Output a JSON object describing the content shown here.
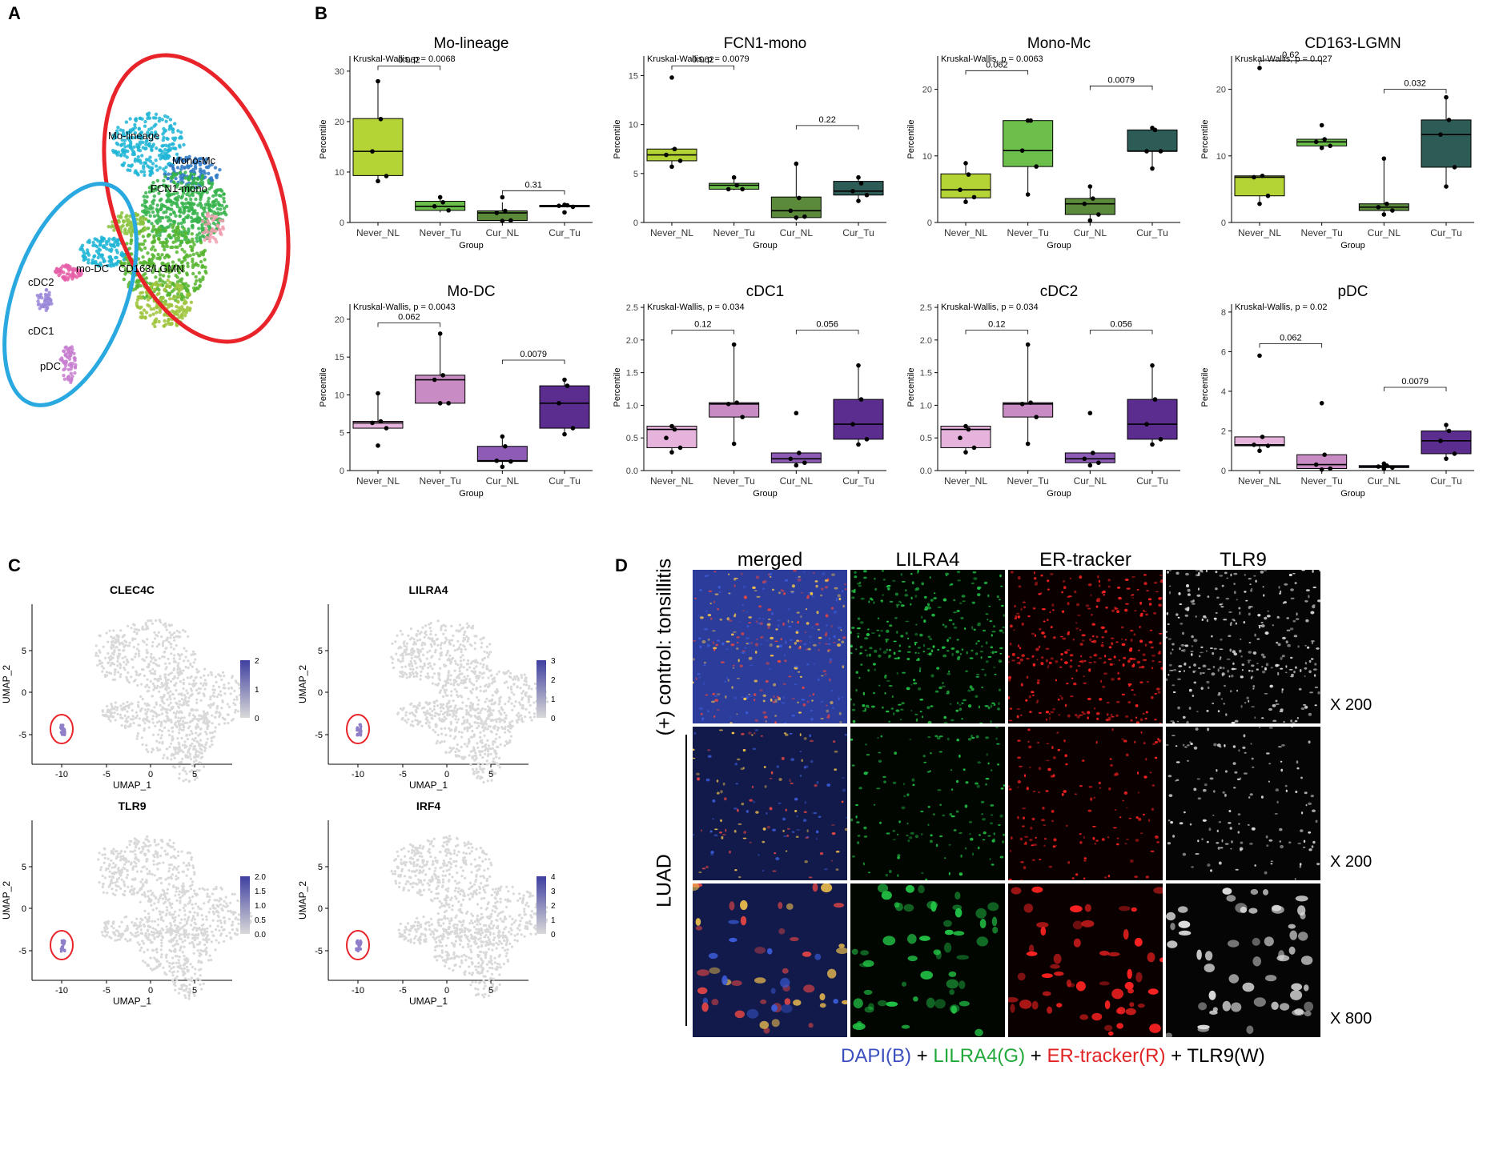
{
  "panels": {
    "a": "A",
    "b": "B",
    "c": "C",
    "d": "D"
  },
  "panel_a": {
    "cluster_labels": [
      "Mo-lineage",
      "Mono-Mc",
      "FCN1-mono",
      "mo-DC",
      "cDC2",
      "CD163/LGMN",
      "cDC1",
      "pDC"
    ],
    "colors": {
      "red_ellipse": "#e8242a",
      "blue_ellipse": "#2aa9e0"
    }
  },
  "panel_b": {
    "xlabel": "Group",
    "ylabel": "Percentile",
    "colors": {
      "mono": [
        "#b4d335",
        "#6cbf4a",
        "#5a8a3a",
        "#2d5b55"
      ],
      "dc": [
        "#e6b3dc",
        "#c98bc4",
        "#8e5cb6",
        "#5a2d8e"
      ]
    }
  },
  "chart_data": [
    {
      "type": "box",
      "title": "Mo-lineage",
      "stat": "Kruskal-Wallis, p = 0.0068",
      "categories": [
        "Never_NL",
        "Never_Tu",
        "Cur_NL",
        "Cur_Tu"
      ],
      "ylim": [
        0,
        33
      ],
      "yticks": [
        0,
        10,
        20,
        30
      ],
      "boxes": [
        {
          "q1": 9.3,
          "median": 14.1,
          "q3": 20.6,
          "min": 8.2,
          "max": 28.0
        },
        {
          "q1": 2.4,
          "median": 3.2,
          "q3": 4.2,
          "min": 2.0,
          "max": 4.8
        },
        {
          "q1": 0.4,
          "median": 1.9,
          "q3": 2.3,
          "min": 0.1,
          "max": 4.0
        },
        {
          "q1": 3.1,
          "median": 3.3,
          "q3": 3.4,
          "min": 3.0,
          "max": 3.5
        }
      ],
      "points": [
        [
          28.0,
          20.5,
          14.1,
          9.2,
          8.2
        ],
        [
          5.0,
          4.0,
          3.2,
          2.4
        ],
        [
          5.0,
          2.3,
          1.9,
          0.4,
          0.3
        ],
        [
          3.5,
          3.4,
          3.3,
          3.1,
          2.0
        ]
      ],
      "brackets": [
        {
          "from": 0,
          "to": 1,
          "y": 31,
          "label": "0.062"
        },
        {
          "from": 2,
          "to": 3,
          "y": 6.3,
          "label": "0.31"
        }
      ]
    },
    {
      "type": "box",
      "title": "FCN1-mono",
      "stat": "Kruskal-Wallis, p = 0.0079",
      "categories": [
        "Never_NL",
        "Never_Tu",
        "Cur_NL",
        "Cur_Tu"
      ],
      "ylim": [
        0,
        17
      ],
      "yticks": [
        0,
        5,
        10,
        15
      ],
      "boxes": [
        {
          "q1": 6.3,
          "median": 6.9,
          "q3": 7.5,
          "min": 5.7,
          "max": 7.6
        },
        {
          "q1": 3.4,
          "median": 3.8,
          "q3": 4.0,
          "min": 3.3,
          "max": 4.6
        },
        {
          "q1": 0.5,
          "median": 1.2,
          "q3": 2.6,
          "min": 0.2,
          "max": 6.0
        },
        {
          "q1": 2.8,
          "median": 3.2,
          "q3": 4.2,
          "min": 2.1,
          "max": 4.6
        }
      ],
      "points": [
        [
          14.8,
          7.5,
          6.9,
          6.3,
          5.7
        ],
        [
          4.6,
          3.8,
          3.4,
          3.4
        ],
        [
          6.0,
          2.5,
          1.2,
          0.6,
          0.5
        ],
        [
          4.6,
          4.0,
          3.2,
          2.8,
          2.2
        ]
      ],
      "brackets": [
        {
          "from": 0,
          "to": 1,
          "y": 16.0,
          "label": "0.062"
        },
        {
          "from": 2,
          "to": 3,
          "y": 9.9,
          "label": "0.22"
        }
      ]
    },
    {
      "type": "box",
      "title": "Mono-Mc",
      "stat": "Kruskal-Wallis, p = 0.0063",
      "categories": [
        "Never_NL",
        "Never_Tu",
        "Cur_NL",
        "Cur_Tu"
      ],
      "ylim": [
        0,
        25
      ],
      "yticks": [
        0,
        10,
        20
      ],
      "boxes": [
        {
          "q1": 3.7,
          "median": 4.9,
          "q3": 7.3,
          "min": 3.0,
          "max": 8.7
        },
        {
          "q1": 8.4,
          "median": 10.8,
          "q3": 15.3,
          "min": 4.2,
          "max": 15.3
        },
        {
          "q1": 1.2,
          "median": 2.8,
          "q3": 3.6,
          "min": 0.3,
          "max": 5.4
        },
        {
          "q1": 10.7,
          "median": 10.7,
          "q3": 13.9,
          "min": 8.1,
          "max": 14.2
        }
      ],
      "points": [
        [
          8.9,
          7.2,
          4.9,
          3.8,
          3.1
        ],
        [
          15.3,
          15.3,
          10.8,
          8.4,
          4.2
        ],
        [
          5.4,
          3.6,
          2.8,
          1.2,
          0.3
        ],
        [
          14.2,
          13.9,
          10.7,
          10.7,
          8.1
        ]
      ],
      "brackets": [
        {
          "from": 0,
          "to": 1,
          "y": 22.8,
          "label": "0.062"
        },
        {
          "from": 2,
          "to": 3,
          "y": 20.5,
          "label": "0.0079"
        }
      ]
    },
    {
      "type": "box",
      "title": "CD163-LGMN",
      "stat": "Kruskal-Wallis, p = 0.027",
      "categories": [
        "Never_NL",
        "Never_Tu",
        "Cur_NL",
        "Cur_Tu"
      ],
      "ylim": [
        0,
        25
      ],
      "yticks": [
        0,
        10,
        20
      ],
      "boxes": [
        {
          "q1": 4.0,
          "median": 6.8,
          "q3": 7.0,
          "min": 2.8,
          "max": 7.0
        },
        {
          "q1": 11.5,
          "median": 12.1,
          "q3": 12.5,
          "min": 11.2,
          "max": 12.6
        },
        {
          "q1": 1.8,
          "median": 2.3,
          "q3": 2.8,
          "min": 1.2,
          "max": 9.6
        },
        {
          "q1": 8.3,
          "median": 13.2,
          "q3": 15.4,
          "min": 5.4,
          "max": 18.8
        }
      ],
      "points": [
        [
          23.2,
          7.0,
          6.8,
          4.0,
          2.8
        ],
        [
          14.6,
          12.5,
          12.1,
          11.5,
          11.2
        ],
        [
          9.6,
          2.8,
          2.3,
          1.8,
          1.2
        ],
        [
          18.8,
          15.4,
          13.2,
          8.3,
          5.4
        ]
      ],
      "brackets": [
        {
          "from": 0,
          "to": 1,
          "y": 24.3,
          "label": "0.62"
        },
        {
          "from": 2,
          "to": 3,
          "y": 20.0,
          "label": "0.032"
        }
      ]
    },
    {
      "type": "box",
      "title": "Mo-DC",
      "stat": "Kruskal-Wallis, p = 0.0043",
      "categories": [
        "Never_NL",
        "Never_Tu",
        "Cur_NL",
        "Cur_Tu"
      ],
      "ylim": [
        0,
        22
      ],
      "yticks": [
        0,
        5,
        10,
        15,
        20
      ],
      "boxes": [
        {
          "q1": 5.6,
          "median": 6.3,
          "q3": 6.5,
          "min": 5.6,
          "max": 10.2
        },
        {
          "q1": 8.9,
          "median": 12.0,
          "q3": 12.6,
          "min": 8.9,
          "max": 18.1
        },
        {
          "q1": 1.2,
          "median": 1.3,
          "q3": 3.2,
          "min": 0.5,
          "max": 4.5
        },
        {
          "q1": 5.6,
          "median": 8.9,
          "q3": 11.2,
          "min": 4.8,
          "max": 12.0
        }
      ],
      "points": [
        [
          10.2,
          6.5,
          6.3,
          5.6,
          3.3
        ],
        [
          18.1,
          12.6,
          12.0,
          8.9,
          8.9
        ],
        [
          4.5,
          3.2,
          1.3,
          1.2,
          0.5
        ],
        [
          12.0,
          11.2,
          8.9,
          5.6,
          4.8
        ]
      ],
      "brackets": [
        {
          "from": 0,
          "to": 1,
          "y": 19.5,
          "label": "0.062"
        },
        {
          "from": 2,
          "to": 3,
          "y": 14.6,
          "label": "0.0079"
        }
      ]
    },
    {
      "type": "box",
      "title": "cDC1",
      "stat": "Kruskal-Wallis, p = 0.034",
      "categories": [
        "Never_NL",
        "Never_Tu",
        "Cur_NL",
        "Cur_Tu"
      ],
      "ylim": [
        0,
        2.55
      ],
      "yticks": [
        0,
        0.5,
        1.0,
        1.5,
        2.0,
        2.5
      ],
      "boxes": [
        {
          "q1": 0.35,
          "median": 0.63,
          "q3": 0.68,
          "min": 0.28,
          "max": 0.68
        },
        {
          "q1": 0.82,
          "median": 1.02,
          "q3": 1.04,
          "min": 0.41,
          "max": 1.93
        },
        {
          "q1": 0.12,
          "median": 0.18,
          "q3": 0.27,
          "min": 0.08,
          "max": 0.27
        },
        {
          "q1": 0.48,
          "median": 0.71,
          "q3": 1.09,
          "min": 0.4,
          "max": 1.61
        }
      ],
      "points": [
        [
          0.68,
          0.63,
          0.5,
          0.35,
          0.28
        ],
        [
          1.93,
          1.04,
          1.02,
          0.82,
          0.41
        ],
        [
          0.88,
          0.27,
          0.18,
          0.12,
          0.08
        ],
        [
          1.61,
          1.09,
          0.71,
          0.48,
          0.4
        ]
      ],
      "brackets": [
        {
          "from": 0,
          "to": 1,
          "y": 2.15,
          "label": "0.12"
        },
        {
          "from": 2,
          "to": 3,
          "y": 2.15,
          "label": "0.056"
        }
      ]
    },
    {
      "type": "box",
      "title": "cDC2",
      "stat": "Kruskal-Wallis, p = 0.034",
      "categories": [
        "Never_NL",
        "Never_Tu",
        "Cur_NL",
        "Cur_Tu"
      ],
      "ylim": [
        0,
        2.55
      ],
      "yticks": [
        0,
        0.5,
        1.0,
        1.5,
        2.0,
        2.5
      ],
      "boxes": [
        {
          "q1": 0.35,
          "median": 0.63,
          "q3": 0.68,
          "min": 0.28,
          "max": 0.68
        },
        {
          "q1": 0.82,
          "median": 1.02,
          "q3": 1.04,
          "min": 0.41,
          "max": 1.93
        },
        {
          "q1": 0.12,
          "median": 0.18,
          "q3": 0.27,
          "min": 0.08,
          "max": 0.27
        },
        {
          "q1": 0.48,
          "median": 0.71,
          "q3": 1.09,
          "min": 0.4,
          "max": 1.61
        }
      ],
      "points": [
        [
          0.68,
          0.63,
          0.5,
          0.35,
          0.28
        ],
        [
          1.93,
          1.04,
          1.02,
          0.82,
          0.41
        ],
        [
          0.88,
          0.27,
          0.18,
          0.12,
          0.08
        ],
        [
          1.61,
          1.09,
          0.71,
          0.48,
          0.4
        ]
      ],
      "brackets": [
        {
          "from": 0,
          "to": 1,
          "y": 2.15,
          "label": "0.12"
        },
        {
          "from": 2,
          "to": 3,
          "y": 2.15,
          "label": "0.056"
        }
      ]
    },
    {
      "type": "box",
      "title": "pDC",
      "stat": "Kruskal-Wallis, p = 0.02",
      "categories": [
        "Never_NL",
        "Never_Tu",
        "Cur_NL",
        "Cur_Tu"
      ],
      "ylim": [
        0,
        8.4
      ],
      "yticks": [
        0,
        2,
        4,
        6,
        8
      ],
      "boxes": [
        {
          "q1": 1.25,
          "median": 1.3,
          "q3": 1.7,
          "min": 1.0,
          "max": 1.7
        },
        {
          "q1": 0.1,
          "median": 0.3,
          "q3": 0.8,
          "min": 0.0,
          "max": 0.8
        },
        {
          "q1": 0.15,
          "median": 0.2,
          "q3": 0.25,
          "min": 0.1,
          "max": 0.3
        },
        {
          "q1": 0.85,
          "median": 1.5,
          "q3": 2.0,
          "min": 0.6,
          "max": 2.3
        }
      ],
      "points": [
        [
          5.8,
          1.7,
          1.3,
          1.25,
          1.0
        ],
        [
          3.4,
          0.8,
          0.3,
          0.1,
          0.05
        ],
        [
          0.35,
          0.25,
          0.2,
          0.15,
          0.1
        ],
        [
          2.3,
          2.0,
          1.5,
          0.85,
          0.6
        ]
      ],
      "brackets": [
        {
          "from": 0,
          "to": 1,
          "y": 6.4,
          "label": "0.062"
        },
        {
          "from": 2,
          "to": 3,
          "y": 4.2,
          "label": "0.0079"
        }
      ]
    }
  ],
  "panel_c": {
    "xlabel": "UMAP_1",
    "ylabel": "UMAP_2",
    "xticks": [
      "-10",
      "-5",
      "0",
      "5"
    ],
    "yticks": [
      "5",
      "0",
      "-5"
    ],
    "plots": [
      {
        "title": "CLEC4C",
        "legend": [
          "2",
          "1",
          "0"
        ]
      },
      {
        "title": "LILRA4",
        "legend": [
          "3",
          "2",
          "1",
          "0"
        ]
      },
      {
        "title": "TLR9",
        "legend": [
          "2.0",
          "1.5",
          "1.0",
          "0.5",
          "0.0"
        ]
      },
      {
        "title": "IRF4",
        "legend": [
          "4",
          "3",
          "2",
          "1",
          "0"
        ]
      }
    ],
    "colors": {
      "low": "#d9d9d9",
      "high": "#3f3fa0",
      "circle": "#e8242a"
    }
  },
  "panel_d": {
    "columns": [
      "merged",
      "LILRA4",
      "ER-tracker",
      "TLR9"
    ],
    "rows": [
      "(+) control: tonsillitis",
      "LUAD"
    ],
    "magnifications": [
      "X 200",
      "X 200",
      "X 800"
    ],
    "caption": {
      "parts": [
        "DAPI(B)",
        " + ",
        "LILRA4(G)",
        " + ",
        "ER-tracker(R)",
        " + ",
        "TLR9(W)"
      ],
      "colors": [
        "#3b4fbf",
        "#000000",
        "#22a83a",
        "#000000",
        "#e02424",
        "#000000",
        "#000000"
      ]
    }
  }
}
